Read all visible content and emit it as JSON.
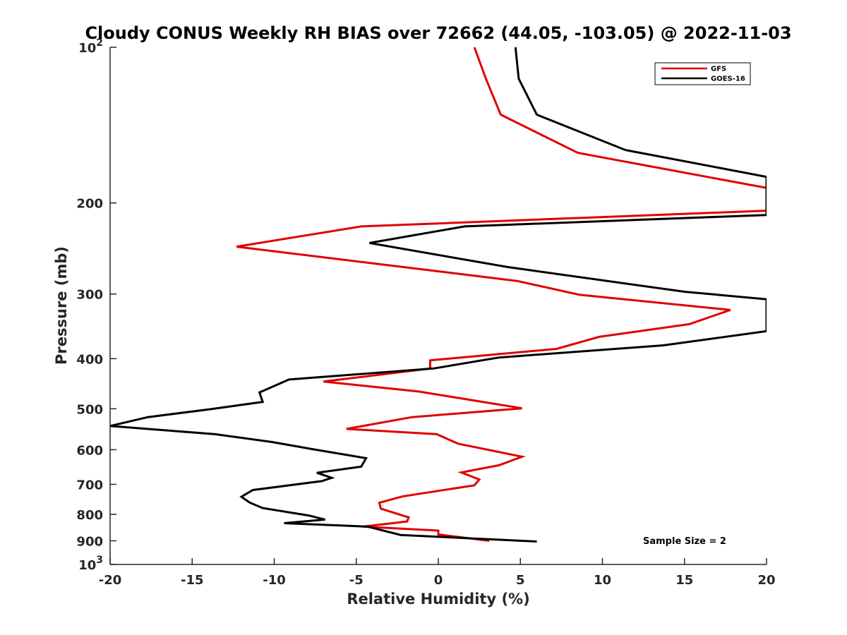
{
  "chart_data": {
    "type": "line",
    "title": "Cloudy CONUS Weekly RH BIAS over 72662 (44.05, -103.05) @ 2022-11-03",
    "xlabel": "Relative Humidity (%)",
    "ylabel": "Pressure (mb)",
    "xlim": [
      -20,
      20
    ],
    "ylim": [
      100,
      1000
    ],
    "y_scale": "log",
    "y_reversed": true,
    "x_ticks": [
      -20,
      -15,
      -10,
      -5,
      0,
      5,
      10,
      15,
      20
    ],
    "x_tick_labels": [
      "-20",
      "-15",
      "-10",
      "-5",
      "0",
      "5",
      "10",
      "15",
      "20"
    ],
    "y_ticks": [
      100,
      200,
      300,
      400,
      500,
      600,
      700,
      800,
      900,
      1000
    ],
    "y_tick_labels": [
      {
        "base": "10",
        "exp": "2"
      },
      {
        "base": "200",
        "exp": ""
      },
      {
        "base": "300",
        "exp": ""
      },
      {
        "base": "400",
        "exp": ""
      },
      {
        "base": "500",
        "exp": ""
      },
      {
        "base": "600",
        "exp": ""
      },
      {
        "base": "700",
        "exp": ""
      },
      {
        "base": "800",
        "exp": ""
      },
      {
        "base": "900",
        "exp": ""
      },
      {
        "base": "10",
        "exp": "3"
      }
    ],
    "grid": false,
    "legend_position": "top-right",
    "annotation": "Sample Size = 2",
    "series": [
      {
        "name": "GFS",
        "color": "#e00000",
        "points": [
          [
            2.2,
            100
          ],
          [
            2.9,
            115
          ],
          [
            3.8,
            135
          ],
          [
            8.5,
            160
          ],
          [
            20,
            187
          ],
          [
            20,
            207
          ],
          [
            -4.7,
            222
          ],
          [
            -12.3,
            243
          ],
          [
            4.8,
            283
          ],
          [
            8.6,
            301
          ],
          [
            17.8,
            322
          ],
          [
            15.3,
            343
          ],
          [
            9.8,
            363
          ],
          [
            7.2,
            383
          ],
          [
            -0.5,
            403
          ],
          [
            -0.5,
            418
          ],
          [
            -7.0,
            443
          ],
          [
            -1.2,
            463
          ],
          [
            5.1,
            499
          ],
          [
            -1.6,
            519
          ],
          [
            -5.6,
            547
          ],
          [
            -0.1,
            560
          ],
          [
            1.2,
            584
          ],
          [
            5.1,
            619
          ],
          [
            3.7,
            643
          ],
          [
            1.4,
            664
          ],
          [
            2.5,
            685
          ],
          [
            2.2,
            703
          ],
          [
            -2.2,
            739
          ],
          [
            -3.6,
            760
          ],
          [
            -3.5,
            780
          ],
          [
            -1.8,
            811
          ],
          [
            -1.9,
            826
          ],
          [
            -4.6,
            845
          ],
          [
            0.0,
            860
          ],
          [
            0.0,
            875
          ],
          [
            3.1,
            900
          ]
        ]
      },
      {
        "name": "GOES-16",
        "color": "#000000",
        "points": [
          [
            4.7,
            100
          ],
          [
            4.9,
            115
          ],
          [
            6.0,
            135
          ],
          [
            11.4,
            158
          ],
          [
            20,
            178
          ],
          [
            20,
            211
          ],
          [
            1.6,
            222
          ],
          [
            -4.2,
            239
          ],
          [
            4.2,
            266
          ],
          [
            15.0,
            297
          ],
          [
            20,
            307
          ],
          [
            20,
            354
          ],
          [
            13.7,
            377
          ],
          [
            3.7,
            398
          ],
          [
            -0.3,
            418
          ],
          [
            -9.1,
            439
          ],
          [
            -10.9,
            465
          ],
          [
            -10.7,
            485
          ],
          [
            -13.9,
            501
          ],
          [
            -17.7,
            519
          ],
          [
            -20.0,
            540
          ],
          [
            -13.6,
            560
          ],
          [
            -10.1,
            580
          ],
          [
            -7.6,
            599
          ],
          [
            -4.4,
            623
          ],
          [
            -4.7,
            647
          ],
          [
            -7.4,
            665
          ],
          [
            -6.5,
            680
          ],
          [
            -7.1,
            690
          ],
          [
            -11.3,
            718
          ],
          [
            -12.0,
            740
          ],
          [
            -11.5,
            759
          ],
          [
            -10.7,
            778
          ],
          [
            -7.9,
            804
          ],
          [
            -6.9,
            819
          ],
          [
            -9.4,
            832
          ],
          [
            -4.3,
            845
          ],
          [
            -2.3,
            877
          ],
          [
            6.0,
            903
          ]
        ]
      }
    ]
  }
}
